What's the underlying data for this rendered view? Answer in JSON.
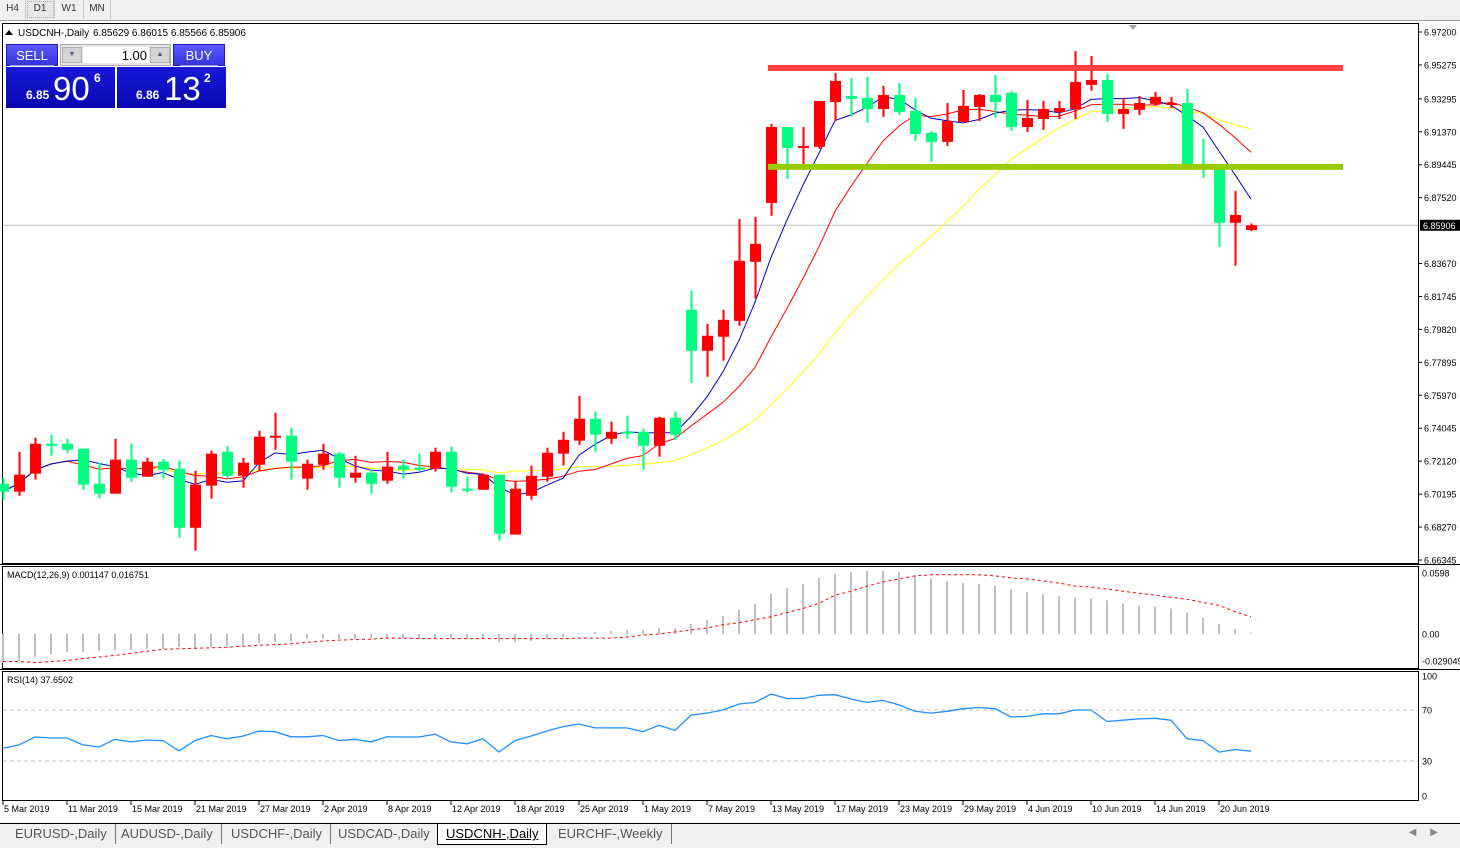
{
  "timeframes": [
    {
      "label": "H4"
    },
    {
      "label": "D1",
      "active": true
    },
    {
      "label": "W1"
    },
    {
      "label": "MN"
    }
  ],
  "chart_header": {
    "symbol": "USDCNH-,Daily",
    "ohlc": "6.85629 6.86015 6.85566 6.85906"
  },
  "trade_panel": {
    "sell_label": "SELL",
    "buy_label": "BUY",
    "lot": "1.00",
    "sell_price": {
      "prefix": "6.85",
      "big": "90",
      "sup": "6"
    },
    "buy_price": {
      "prefix": "6.86",
      "big": "13",
      "sup": "2"
    }
  },
  "tabs": [
    {
      "label": "EURUSD-,Daily"
    },
    {
      "label": "AUDUSD-,Daily"
    },
    {
      "label": "USDCHF-,Daily"
    },
    {
      "label": "USDCAD-,Daily"
    },
    {
      "label": "USDCNH-,Daily",
      "active": true
    },
    {
      "label": "EURCHF-,Weekly"
    }
  ],
  "chart_data": {
    "type": "candlestick",
    "symbol": "USDCNH-",
    "timeframe": "Daily",
    "colors": {
      "bull": "#ff0000",
      "bear": "#00ff7f",
      "ma_fast": "#0000cc",
      "ma_mid": "#ff0000",
      "ma_slow": "#ffff00",
      "macd_hist": "#c0c0c0",
      "macd_signal": "#ff0000",
      "rsi": "#1e90ff",
      "grid_level": "#c0c0c0"
    },
    "ylim": [
      6.66345,
      6.972
    ],
    "y_ticks": [
      "6.97200",
      "6.95275",
      "6.93295",
      "6.91370",
      "6.89445",
      "6.87520",
      "6.83670",
      "6.81745",
      "6.79820",
      "6.77895",
      "6.75970",
      "6.74045",
      "6.72120",
      "6.70195",
      "6.68270",
      "6.66345"
    ],
    "current_price": "6.85906",
    "horizontal_lines": [
      {
        "price": 6.951,
        "color": "#ff4040",
        "from_date": "2019-05-13"
      },
      {
        "price": 6.8932,
        "color": "#99cc00",
        "from_date": "2019-05-13"
      }
    ],
    "x_labels": [
      {
        "date": "2019-03-05",
        "text": "5 Mar 2019"
      },
      {
        "date": "2019-03-11",
        "text": "11 Mar 2019"
      },
      {
        "date": "2019-03-15",
        "text": "15 Mar 2019"
      },
      {
        "date": "2019-03-21",
        "text": "21 Mar 2019"
      },
      {
        "date": "2019-03-27",
        "text": "27 Mar 2019"
      },
      {
        "date": "2019-04-02",
        "text": "2 Apr 2019"
      },
      {
        "date": "2019-04-08",
        "text": "8 Apr 2019"
      },
      {
        "date": "2019-04-12",
        "text": "12 Apr 2019"
      },
      {
        "date": "2019-04-18",
        "text": "18 Apr 2019"
      },
      {
        "date": "2019-04-25",
        "text": "25 Apr 2019"
      },
      {
        "date": "2019-05-01",
        "text": "1 May 2019"
      },
      {
        "date": "2019-05-07",
        "text": "7 May 2019"
      },
      {
        "date": "2019-05-13",
        "text": "13 May 2019"
      },
      {
        "date": "2019-05-17",
        "text": "17 May 2019"
      },
      {
        "date": "2019-05-23",
        "text": "23 May 2019"
      },
      {
        "date": "2019-05-29",
        "text": "29 May 2019"
      },
      {
        "date": "2019-06-04",
        "text": "4 Jun 2019"
      },
      {
        "date": "2019-06-10",
        "text": "10 Jun 2019"
      },
      {
        "date": "2019-06-14",
        "text": "14 Jun 2019"
      },
      {
        "date": "2019-06-20",
        "text": "20 Jun 2019"
      }
    ],
    "dates": [
      "2019-03-05",
      "2019-03-06",
      "2019-03-07",
      "2019-03-08",
      "2019-03-11",
      "2019-03-12",
      "2019-03-13",
      "2019-03-14",
      "2019-03-15",
      "2019-03-18",
      "2019-03-19",
      "2019-03-20",
      "2019-03-21",
      "2019-03-22",
      "2019-03-25",
      "2019-03-26",
      "2019-03-27",
      "2019-03-28",
      "2019-03-29",
      "2019-04-01",
      "2019-04-02",
      "2019-04-03",
      "2019-04-04",
      "2019-04-05",
      "2019-04-08",
      "2019-04-09",
      "2019-04-10",
      "2019-04-11",
      "2019-04-12",
      "2019-04-15",
      "2019-04-16",
      "2019-04-17",
      "2019-04-18",
      "2019-04-22",
      "2019-04-23",
      "2019-04-24",
      "2019-04-25",
      "2019-04-26",
      "2019-04-29",
      "2019-04-30",
      "2019-05-01",
      "2019-05-02",
      "2019-05-03",
      "2019-05-06",
      "2019-05-07",
      "2019-05-08",
      "2019-05-09",
      "2019-05-10",
      "2019-05-13",
      "2019-05-14",
      "2019-05-15",
      "2019-05-16",
      "2019-05-17",
      "2019-05-20",
      "2019-05-21",
      "2019-05-22",
      "2019-05-23",
      "2019-05-24",
      "2019-05-27",
      "2019-05-28",
      "2019-05-29",
      "2019-05-30",
      "2019-05-31",
      "2019-06-03",
      "2019-06-04",
      "2019-06-05",
      "2019-06-06",
      "2019-06-07",
      "2019-06-10",
      "2019-06-11",
      "2019-06-12",
      "2019-06-13",
      "2019-06-14",
      "2019-06-17",
      "2019-06-18",
      "2019-06-19",
      "2019-06-20",
      "2019-06-21",
      "2019-06-24"
    ],
    "ohlc": [
      [
        6.708,
        6.7115,
        6.6987,
        6.7034
      ],
      [
        6.7034,
        6.7267,
        6.701,
        6.7133
      ],
      [
        6.7139,
        6.7349,
        6.7104,
        6.7314
      ],
      [
        6.7314,
        6.7367,
        6.7244,
        6.7302
      ],
      [
        6.7314,
        6.7343,
        6.7261,
        6.7279
      ],
      [
        6.7285,
        6.7285,
        6.7045,
        6.7075
      ],
      [
        6.708,
        6.7203,
        6.6993,
        6.7022
      ],
      [
        6.7022,
        6.7343,
        6.7022,
        6.7221
      ],
      [
        6.7221,
        6.7314,
        6.7092,
        6.7115
      ],
      [
        6.7121,
        6.7232,
        6.7121,
        6.7209
      ],
      [
        6.7209,
        6.7226,
        6.711,
        6.7162
      ],
      [
        6.7168,
        6.7215,
        6.6765,
        6.6823
      ],
      [
        6.6823,
        6.7156,
        6.6689,
        6.7075
      ],
      [
        6.7069,
        6.7273,
        6.6993,
        6.7256
      ],
      [
        6.7267,
        6.7302,
        6.711,
        6.7127
      ],
      [
        6.7127,
        6.7232,
        6.7057,
        6.7203
      ],
      [
        6.7191,
        6.739,
        6.7156,
        6.7355
      ],
      [
        6.7349,
        6.7495,
        6.7279,
        6.7361
      ],
      [
        6.7361,
        6.7407,
        6.7104,
        6.7209
      ],
      [
        6.711,
        6.7221,
        6.7045,
        6.7197
      ],
      [
        6.7191,
        6.7314,
        6.7162,
        6.7256
      ],
      [
        6.7256,
        6.7267,
        6.7057,
        6.7115
      ],
      [
        6.7115,
        6.7244,
        6.7086,
        6.7145
      ],
      [
        6.7145,
        6.7162,
        6.7022,
        6.708
      ],
      [
        6.7098,
        6.7267,
        6.708,
        6.718
      ],
      [
        6.7186,
        6.7221,
        6.711,
        6.7162
      ],
      [
        6.7174,
        6.7256,
        6.7151,
        6.7168
      ],
      [
        6.7168,
        6.7291,
        6.7151,
        6.7267
      ],
      [
        6.7267,
        6.7297,
        6.7028,
        6.7063
      ],
      [
        6.7051,
        6.7121,
        6.7028,
        6.7045
      ],
      [
        6.7045,
        6.7139,
        6.7045,
        6.7133
      ],
      [
        6.7133,
        6.7133,
        6.6748,
        6.6788
      ],
      [
        6.6783,
        6.7098,
        6.6783,
        6.7051
      ],
      [
        6.701,
        6.7186,
        6.6987,
        6.7127
      ],
      [
        6.7121,
        6.7291,
        6.7092,
        6.7261
      ],
      [
        6.7256,
        6.7384,
        6.7186,
        6.7337
      ],
      [
        6.7332,
        6.7594,
        6.7308,
        6.746
      ],
      [
        6.746,
        6.7501,
        6.7267,
        6.7367
      ],
      [
        6.7343,
        6.7443,
        6.7314,
        6.7384
      ],
      [
        6.7384,
        6.7478,
        6.7343,
        6.7372
      ],
      [
        6.7384,
        6.7402,
        6.7162,
        6.7302
      ],
      [
        6.7302,
        6.7472,
        6.7238,
        6.7466
      ],
      [
        6.7466,
        6.7501,
        6.7337,
        6.7367
      ],
      [
        6.8097,
        6.8208,
        6.767,
        6.7857
      ],
      [
        6.7857,
        6.8015,
        6.7705,
        6.7945
      ],
      [
        6.7939,
        6.8097,
        6.7799,
        6.8038
      ],
      [
        6.8032,
        6.8628,
        6.8003,
        6.8383
      ],
      [
        6.8377,
        6.864,
        6.8161,
        6.8482
      ],
      [
        6.8721,
        6.9183,
        6.8646,
        6.9165
      ],
      [
        6.9165,
        6.9165,
        6.8862,
        6.9043
      ],
      [
        6.9043,
        6.9165,
        6.8932,
        6.9054
      ],
      [
        6.9049,
        6.9317,
        6.9037,
        6.9317
      ],
      [
        6.9311,
        6.9481,
        6.92,
        6.9434
      ],
      [
        6.9346,
        6.9451,
        6.923,
        6.9329
      ],
      [
        6.9335,
        6.9457,
        6.9189,
        6.927
      ],
      [
        6.927,
        6.9405,
        6.9224,
        6.9352
      ],
      [
        6.9352,
        6.9422,
        6.9235,
        6.9253
      ],
      [
        6.9259,
        6.9335,
        6.9084,
        6.9124
      ],
      [
        6.913,
        6.9142,
        6.8961,
        6.9078
      ],
      [
        6.9078,
        6.9305,
        6.9054,
        6.92
      ],
      [
        6.9195,
        6.9381,
        6.9195,
        6.9288
      ],
      [
        6.9282,
        6.9358,
        6.92,
        6.9352
      ],
      [
        6.9352,
        6.9469,
        6.9218,
        6.9311
      ],
      [
        6.9364,
        6.9376,
        6.9142,
        6.9165
      ],
      [
        6.9165,
        6.9323,
        6.9136,
        6.9218
      ],
      [
        6.9212,
        6.9317,
        6.9148,
        6.927
      ],
      [
        6.9253,
        6.9317,
        6.9212,
        6.9276
      ],
      [
        6.927,
        6.9609,
        6.9212,
        6.9428
      ],
      [
        6.9411,
        6.958,
        6.9376,
        6.944
      ],
      [
        6.944,
        6.9475,
        6.9195,
        6.9241
      ],
      [
        6.9241,
        6.9335,
        6.9154,
        6.927
      ],
      [
        6.9265,
        6.9346,
        6.9235,
        6.9305
      ],
      [
        6.93,
        6.937,
        6.9288,
        6.9341
      ],
      [
        6.9294,
        6.9341,
        6.9276,
        6.9305
      ],
      [
        6.9305,
        6.9387,
        6.8932,
        6.8932
      ],
      [
        6.8949,
        6.9095,
        6.8867,
        6.8938
      ],
      [
        6.8926,
        6.8949,
        6.8465,
        6.8605
      ],
      [
        6.8605,
        6.8792,
        6.8354,
        6.8651
      ],
      [
        6.85629,
        6.86015,
        6.85566,
        6.85906
      ]
    ],
    "macd": {
      "label": "MACD(12,26,9) 0.001147 0.016751",
      "ylim": [
        -0.029049,
        0.0598
      ],
      "y_ticks": [
        "0.0598",
        "0.00",
        "-0.029049"
      ],
      "main": [
        -0.028,
        -0.0265,
        -0.0225,
        -0.0196,
        -0.0176,
        -0.0176,
        -0.0167,
        -0.0157,
        -0.0157,
        -0.0147,
        -0.0147,
        -0.0127,
        -0.0147,
        -0.0127,
        -0.0118,
        -0.0108,
        -0.0088,
        -0.0078,
        -0.0069,
        -0.0049,
        -0.0049,
        -0.0049,
        -0.0049,
        -0.0039,
        -0.0045,
        -0.0045,
        -0.0045,
        -0.0045,
        -0.0045,
        -0.0045,
        -0.0045,
        -0.008,
        -0.008,
        -0.007,
        -0.005,
        -0.003,
        0.001,
        0.002,
        0.003,
        0.004,
        0.004,
        0.006,
        0.006,
        0.0098,
        0.0137,
        0.0176,
        0.0235,
        0.0294,
        0.0392,
        0.045,
        0.049,
        0.055,
        0.059,
        0.061,
        0.062,
        0.062,
        0.061,
        0.058,
        0.054,
        0.052,
        0.05,
        0.049,
        0.047,
        0.044,
        0.041,
        0.039,
        0.037,
        0.036,
        0.035,
        0.033,
        0.03,
        0.028,
        0.027,
        0.025,
        0.021,
        0.016,
        0.01,
        0.005,
        0.001147
      ],
      "signal": [
        -0.027,
        -0.027,
        -0.028,
        -0.027,
        -0.026,
        -0.024,
        -0.0225,
        -0.021,
        -0.019,
        -0.017,
        -0.015,
        -0.0145,
        -0.014,
        -0.0135,
        -0.013,
        -0.012,
        -0.011,
        -0.0105,
        -0.0095,
        -0.008,
        -0.007,
        -0.006,
        -0.0055,
        -0.005,
        -0.004,
        -0.004,
        -0.0045,
        -0.0045,
        -0.0045,
        -0.0045,
        -0.0045,
        -0.0045,
        -0.0045,
        -0.0045,
        -0.0045,
        -0.0045,
        -0.004,
        -0.004,
        -0.004,
        -0.003,
        -0.001,
        0.0,
        0.002,
        0.004,
        0.006,
        0.009,
        0.011,
        0.014,
        0.017,
        0.021,
        0.025,
        0.03,
        0.038,
        0.042,
        0.047,
        0.051,
        0.054,
        0.057,
        0.058,
        0.058,
        0.058,
        0.058,
        0.057,
        0.055,
        0.054,
        0.052,
        0.05,
        0.047,
        0.046,
        0.044,
        0.042,
        0.04,
        0.038,
        0.036,
        0.034,
        0.031,
        0.028,
        0.022,
        0.016751
      ]
    },
    "rsi": {
      "label": "RSI(14) 37.6502",
      "ylim": [
        0,
        100
      ],
      "levels": [
        70,
        30
      ],
      "y_ticks": [
        "100",
        "70",
        "30",
        "0"
      ],
      "values": [
        40,
        42.6,
        48.8,
        48,
        48,
        42.6,
        41,
        47,
        45,
        46.5,
        46,
        38,
        46,
        50,
        47.5,
        49.5,
        53.5,
        53,
        49,
        49,
        50,
        46,
        47,
        45,
        49,
        48.8,
        48.8,
        51,
        45,
        43.5,
        47.5,
        37,
        46,
        49.5,
        53.5,
        57,
        59,
        56,
        56,
        56,
        53,
        58,
        54,
        66,
        67.6,
        70,
        74.7,
        76,
        82.5,
        79,
        79,
        81.5,
        82,
        78.6,
        76,
        77.5,
        74,
        69,
        67.6,
        69,
        71,
        72,
        71,
        64.5,
        65,
        67,
        67,
        70,
        70,
        61,
        62,
        63,
        63.5,
        62,
        47.5,
        46,
        37,
        39,
        37.6502
      ]
    }
  }
}
